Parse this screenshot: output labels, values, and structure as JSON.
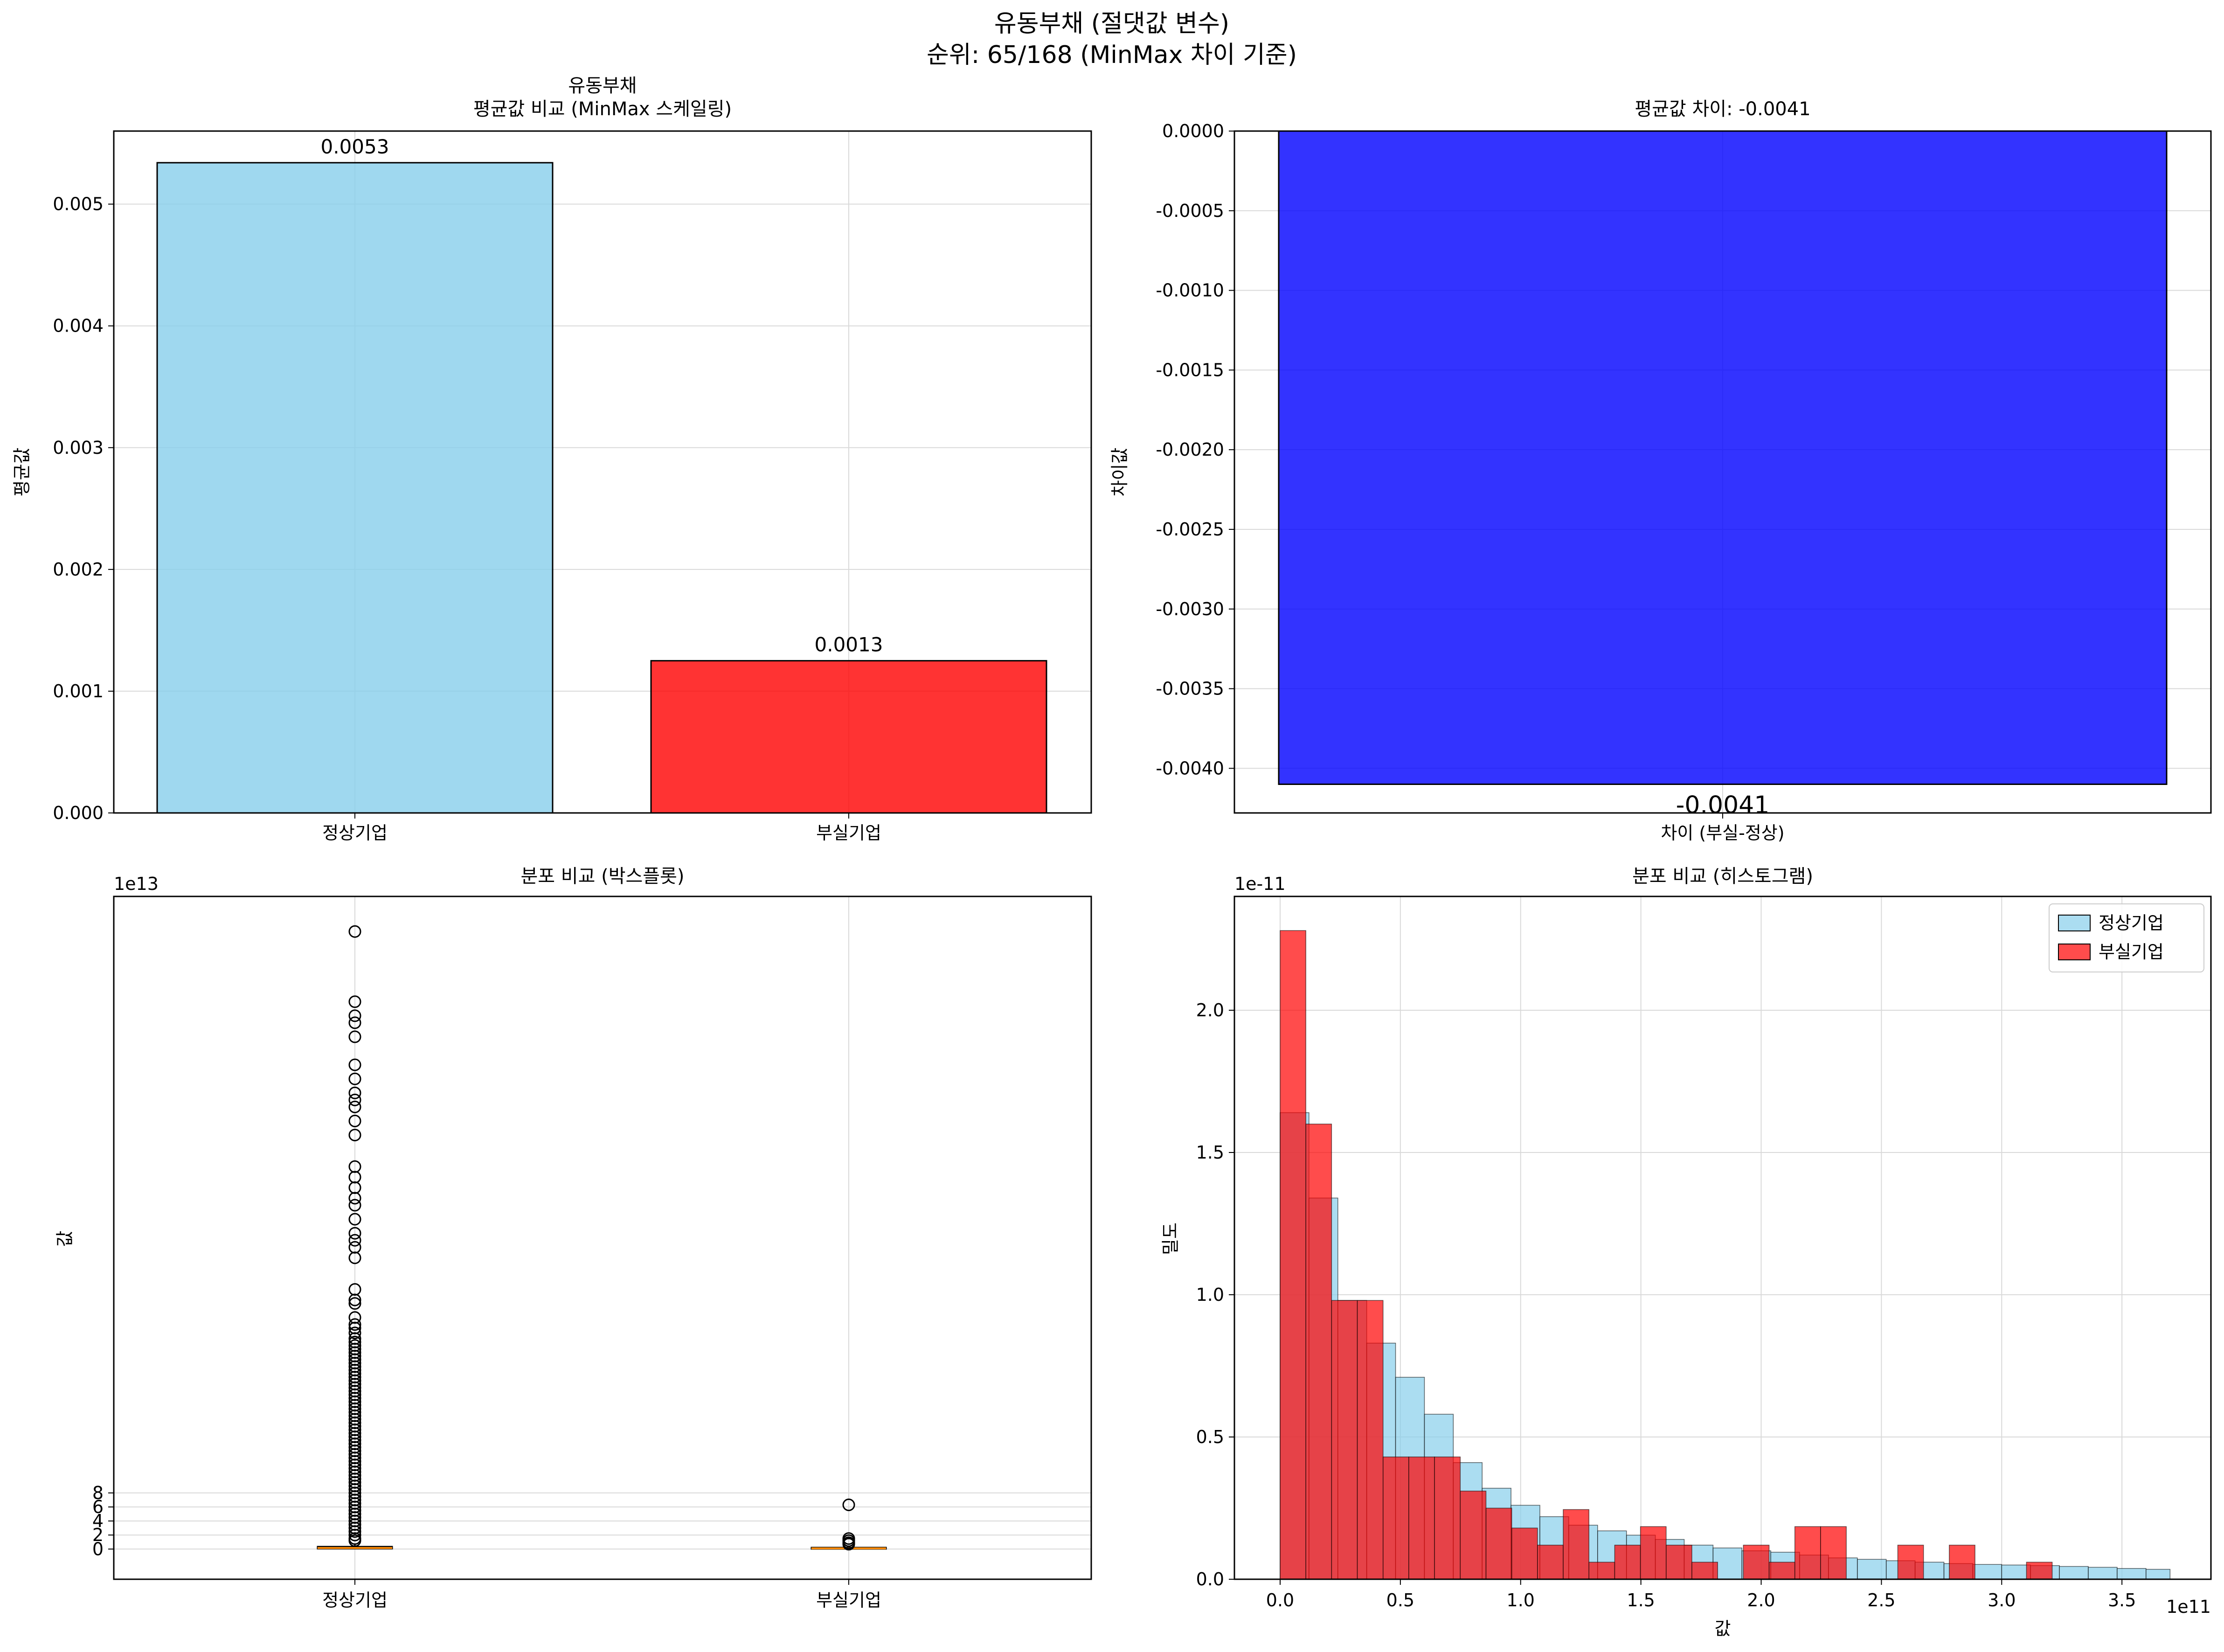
{
  "figure": {
    "title_line1": "유동부채 (절댓값 변수)",
    "title_line2": "순위: 65/168 (MinMax 차이 기준)"
  },
  "colors": {
    "normal": "#87ceeb",
    "distressed": "#ff0000",
    "difference": "#0000ff",
    "median": "#ff8c00"
  },
  "chart_data": [
    {
      "type": "bar",
      "title_line1": "유동부채",
      "title_line2": "평균값 비교 (MinMax 스케일링)",
      "categories": [
        "정상기업",
        "부실기업"
      ],
      "values": [
        0.00534,
        0.00125
      ],
      "value_labels": [
        "0.0053",
        "0.0013"
      ],
      "xlabel": "",
      "ylabel": "평균값",
      "ylim": [
        0,
        0.0056
      ],
      "yticks": [
        0,
        0.001,
        0.002,
        0.003,
        0.004,
        0.005
      ],
      "ytick_labels": [
        "0.000",
        "0.001",
        "0.002",
        "0.003",
        "0.004",
        "0.005"
      ],
      "grid": true
    },
    {
      "type": "bar",
      "title": "평균값 차이: -0.0041",
      "categories": [
        "차이 (부실-정상)"
      ],
      "values": [
        -0.0041
      ],
      "value_labels": [
        "-0.0041"
      ],
      "xlabel": "",
      "ylabel": "차이값",
      "ylim": [
        -0.00428,
        0
      ],
      "yticks": [
        0,
        -0.0005,
        -0.001,
        -0.0015,
        -0.002,
        -0.0025,
        -0.003,
        -0.0035,
        -0.004
      ],
      "ytick_labels": [
        "0.0000",
        "-0.0005",
        "-0.0010",
        "-0.0015",
        "-0.0020",
        "-0.0025",
        "-0.0030",
        "-0.0035",
        "-0.0040"
      ],
      "grid": true
    },
    {
      "type": "box",
      "title": "분포 비교 (박스플롯)",
      "categories": [
        "정상기업",
        "부실기업"
      ],
      "ylabel": "값",
      "y_offset_label": "1e13",
      "ylim": [
        -4.3,
        93
      ],
      "yticks": [
        0,
        2,
        4,
        6,
        8
      ],
      "ytick_labels": [
        "0",
        "2",
        "4",
        "6",
        "8"
      ],
      "boxes": [
        {
          "q1": 0.05,
          "median": 0.15,
          "q3": 0.35,
          "whisker_low": 0.0,
          "whisker_high": 0.8,
          "outliers": [
            88.0,
            78.0,
            76.0,
            75.0,
            73.0,
            69.0,
            67.0,
            65.0,
            64.0,
            63.0,
            61.0,
            59.0,
            54.5,
            53.0,
            51.5,
            50.0,
            49.0,
            47.0,
            45.0,
            44.0,
            43.0,
            41.5,
            37.0,
            35.5,
            35.0,
            33.0,
            32.0,
            31.5,
            30.8,
            30.0,
            29.5,
            29.0,
            28.5,
            28.0,
            27.5,
            27.0,
            26.5,
            26.0,
            25.5,
            25.0,
            24.5,
            24.0,
            23.5,
            23.0,
            22.5,
            22.0,
            21.5,
            21.0,
            20.5,
            20.0,
            19.5,
            19.0,
            18.5,
            18.0,
            17.5,
            17.0,
            16.5,
            16.0,
            15.5,
            15.0,
            14.5,
            14.0,
            13.5,
            13.0,
            12.5,
            12.0,
            11.5,
            11.0,
            10.5,
            10.0,
            9.5,
            9.0,
            8.5,
            8.0,
            7.5,
            7.0,
            6.5,
            6.0,
            5.5,
            5.0,
            4.5,
            4.0,
            3.5,
            3.0,
            2.5,
            2.0,
            1.5,
            1.2
          ]
        },
        {
          "q1": 0.03,
          "median": 0.1,
          "q3": 0.22,
          "whisker_low": 0.0,
          "whisker_high": 0.45,
          "outliers": [
            6.3,
            1.5,
            1.2,
            0.9,
            0.7
          ]
        }
      ],
      "grid": true
    },
    {
      "type": "histogram",
      "title": "분포 비교 (히스토그램)",
      "xlabel": "값",
      "ylabel": "밀도",
      "x_offset_label": "1e11",
      "y_offset_label": "1e-11",
      "xlim": [
        -0.19,
        3.87
      ],
      "ylim": [
        0,
        2.4
      ],
      "xticks": [
        0.0,
        0.5,
        1.0,
        1.5,
        2.0,
        2.5,
        3.0,
        3.5
      ],
      "xtick_labels": [
        "0.0",
        "0.5",
        "1.0",
        "1.5",
        "2.0",
        "2.5",
        "3.0",
        "3.5"
      ],
      "yticks": [
        0.0,
        0.5,
        1.0,
        1.5,
        2.0
      ],
      "ytick_labels": [
        "0.0",
        "0.5",
        "1.0",
        "1.5",
        "2.0"
      ],
      "legend_position": "top-right",
      "series": [
        {
          "name": "정상기업",
          "color": "#87ceeb",
          "bins": [
            [
              0.0,
              0.12,
              1.64
            ],
            [
              0.12,
              0.24,
              1.34
            ],
            [
              0.24,
              0.36,
              0.98
            ],
            [
              0.36,
              0.48,
              0.83
            ],
            [
              0.48,
              0.6,
              0.71
            ],
            [
              0.6,
              0.72,
              0.58
            ],
            [
              0.72,
              0.84,
              0.41
            ],
            [
              0.84,
              0.96,
              0.32
            ],
            [
              0.96,
              1.08,
              0.26
            ],
            [
              1.08,
              1.2,
              0.22
            ],
            [
              1.2,
              1.32,
              0.19
            ],
            [
              1.32,
              1.44,
              0.17
            ],
            [
              1.44,
              1.56,
              0.155
            ],
            [
              1.56,
              1.68,
              0.14
            ],
            [
              1.68,
              1.8,
              0.12
            ],
            [
              1.8,
              1.92,
              0.11
            ],
            [
              1.92,
              2.04,
              0.1
            ],
            [
              2.04,
              2.16,
              0.095
            ],
            [
              2.16,
              2.28,
              0.085
            ],
            [
              2.28,
              2.4,
              0.075
            ],
            [
              2.4,
              2.52,
              0.07
            ],
            [
              2.52,
              2.64,
              0.065
            ],
            [
              2.64,
              2.76,
              0.06
            ],
            [
              2.76,
              2.88,
              0.055
            ],
            [
              2.88,
              3.0,
              0.052
            ],
            [
              3.0,
              3.12,
              0.05
            ],
            [
              3.12,
              3.24,
              0.048
            ],
            [
              3.24,
              3.36,
              0.045
            ],
            [
              3.36,
              3.48,
              0.042
            ],
            [
              3.48,
              3.6,
              0.038
            ],
            [
              3.6,
              3.7,
              0.035
            ]
          ]
        },
        {
          "name": "부실기업",
          "color": "#ff0000",
          "bins": [
            [
              0.0,
              0.107,
              2.28
            ],
            [
              0.107,
              0.214,
              1.6
            ],
            [
              0.214,
              0.321,
              0.98
            ],
            [
              0.321,
              0.428,
              0.98
            ],
            [
              0.428,
              0.535,
              0.43
            ],
            [
              0.535,
              0.642,
              0.43
            ],
            [
              0.642,
              0.749,
              0.43
            ],
            [
              0.749,
              0.856,
              0.31
            ],
            [
              0.856,
              0.963,
              0.25
            ],
            [
              0.963,
              1.07,
              0.18
            ],
            [
              1.07,
              1.177,
              0.12
            ],
            [
              1.177,
              1.284,
              0.245
            ],
            [
              1.284,
              1.391,
              0.06
            ],
            [
              1.391,
              1.498,
              0.12
            ],
            [
              1.498,
              1.605,
              0.185
            ],
            [
              1.605,
              1.712,
              0.12
            ],
            [
              1.712,
              1.819,
              0.06
            ],
            [
              1.819,
              1.926,
              0.0
            ],
            [
              1.926,
              2.033,
              0.12
            ],
            [
              2.033,
              2.14,
              0.06
            ],
            [
              2.14,
              2.247,
              0.185
            ],
            [
              2.247,
              2.354,
              0.185
            ],
            [
              2.354,
              2.461,
              0.0
            ],
            [
              2.461,
              2.568,
              0.0
            ],
            [
              2.568,
              2.675,
              0.12
            ],
            [
              2.675,
              2.782,
              0.0
            ],
            [
              2.782,
              2.889,
              0.12
            ],
            [
              2.889,
              2.996,
              0.0
            ],
            [
              2.996,
              3.103,
              0.0
            ],
            [
              3.103,
              3.21,
              0.06
            ]
          ]
        }
      ],
      "grid": true
    }
  ]
}
